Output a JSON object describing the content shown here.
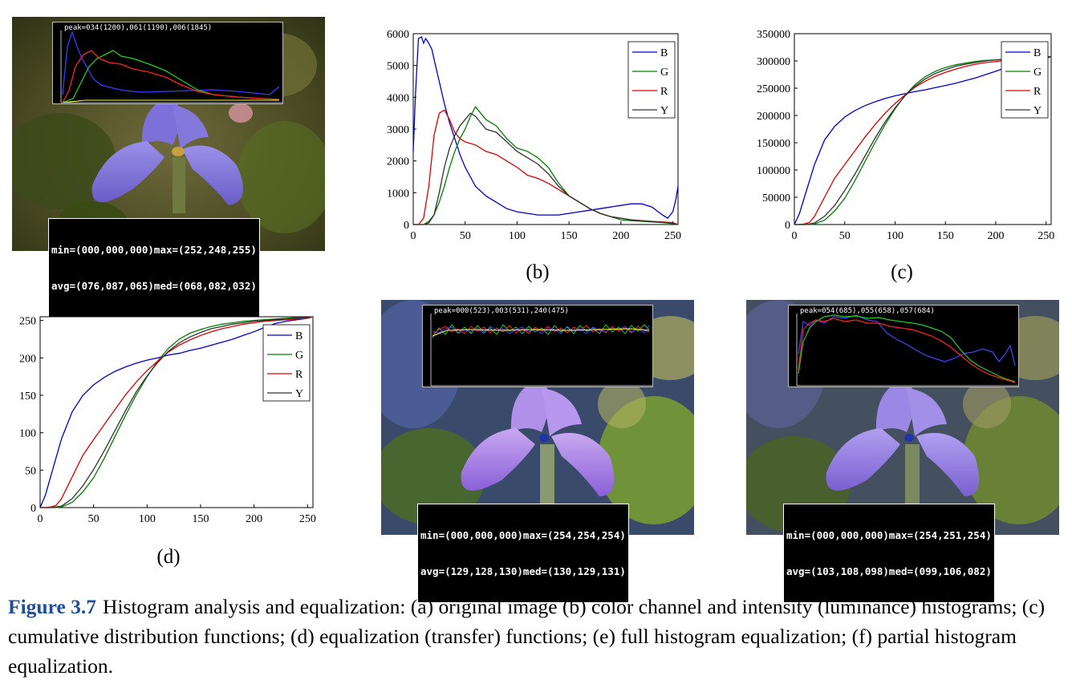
{
  "panels": {
    "a": {
      "label": "(a)",
      "peak": "peak=034(1200),061(1190),006(1845)",
      "stats_line1": "min=(000,000,000)max=(252,248,255)",
      "stats_line2": "avg=(076,087,065)med=(068,082,032)"
    },
    "b": {
      "label": "(b)"
    },
    "c": {
      "label": "(c)"
    },
    "d": {
      "label": "(d)"
    },
    "e": {
      "label": "(e)",
      "peak": "peak=000(523),003(531),240(475)",
      "stats_line1": "min=(000,000,000)max=(254,254,254)",
      "stats_line2": "avg=(129,128,130)med=(130,129,131)"
    },
    "f": {
      "label": "(f)",
      "peak": "peak=054(685),055(658),057(684)",
      "stats_line1": "min=(000,000,000)max=(254,251,254)",
      "stats_line2": "avg=(103,108,098)med=(099,106,082)"
    }
  },
  "caption": {
    "figure": "Figure 3.7",
    "text": "Histogram analysis and equalization: (a) original image (b) color channel and intensity (luminance) histograms; (c) cumulative distribution functions; (d) equalization (transfer) functions; (e) full histogram equalization; (f) partial histogram equalization."
  },
  "colors": {
    "B": "#0000cc",
    "G": "#008000",
    "R": "#e00000",
    "Y": "#333333"
  },
  "chart_data": [
    {
      "id": "b",
      "type": "line",
      "title": "",
      "xlabel": "",
      "ylabel": "",
      "xlim": [
        0,
        255
      ],
      "ylim": [
        0,
        6000
      ],
      "xticks": [
        0,
        50,
        100,
        150,
        200,
        250
      ],
      "yticks": [
        0,
        1000,
        2000,
        3000,
        4000,
        5000,
        6000
      ],
      "grid": false,
      "legend": "top-right",
      "series": [
        {
          "name": "B",
          "color": "#0000cc",
          "x": [
            0,
            2,
            5,
            8,
            10,
            12,
            15,
            18,
            20,
            25,
            30,
            35,
            40,
            45,
            50,
            60,
            70,
            80,
            90,
            100,
            110,
            120,
            130,
            140,
            150,
            160,
            170,
            180,
            190,
            200,
            210,
            220,
            230,
            240,
            245,
            250,
            253,
            255
          ],
          "y": [
            2300,
            4000,
            5850,
            5900,
            5700,
            5850,
            5700,
            5500,
            5200,
            4500,
            3800,
            3200,
            2700,
            2200,
            1800,
            1200,
            900,
            700,
            500,
            400,
            350,
            300,
            300,
            300,
            350,
            400,
            450,
            500,
            550,
            600,
            650,
            650,
            550,
            300,
            200,
            400,
            800,
            1200
          ]
        },
        {
          "name": "G",
          "color": "#008000",
          "x": [
            0,
            10,
            15,
            20,
            25,
            30,
            35,
            40,
            45,
            50,
            55,
            60,
            65,
            70,
            75,
            80,
            90,
            100,
            110,
            120,
            130,
            140,
            150,
            160,
            170,
            180,
            190,
            200,
            210,
            220,
            230,
            240,
            250,
            255
          ],
          "y": [
            0,
            0,
            100,
            300,
            700,
            1200,
            1800,
            2300,
            2700,
            3000,
            3400,
            3700,
            3500,
            3300,
            3200,
            3100,
            2700,
            2400,
            2300,
            2100,
            1800,
            1300,
            900,
            700,
            500,
            350,
            250,
            150,
            120,
            100,
            80,
            60,
            30,
            0
          ]
        },
        {
          "name": "R",
          "color": "#e00000",
          "x": [
            0,
            5,
            10,
            15,
            20,
            25,
            30,
            35,
            40,
            45,
            50,
            60,
            70,
            80,
            90,
            100,
            110,
            120,
            130,
            140,
            150,
            160,
            170,
            180,
            190,
            200,
            210,
            220,
            230,
            240,
            250,
            255
          ],
          "y": [
            0,
            0,
            200,
            1200,
            2800,
            3500,
            3600,
            3300,
            2900,
            2700,
            2600,
            2500,
            2300,
            2200,
            2000,
            1800,
            1550,
            1450,
            1300,
            1100,
            900,
            700,
            500,
            350,
            250,
            200,
            150,
            120,
            100,
            80,
            60,
            0
          ]
        },
        {
          "name": "Y",
          "color": "#333333",
          "x": [
            0,
            10,
            15,
            20,
            25,
            30,
            35,
            40,
            45,
            50,
            55,
            60,
            70,
            80,
            90,
            100,
            110,
            120,
            130,
            140,
            150,
            160,
            170,
            180,
            190,
            200,
            210,
            220,
            230,
            240,
            250,
            255
          ],
          "y": [
            0,
            0,
            50,
            300,
            1000,
            1800,
            2400,
            2800,
            3100,
            3300,
            3500,
            3400,
            3000,
            2900,
            2600,
            2300,
            2100,
            1900,
            1600,
            1200,
            900,
            700,
            500,
            350,
            250,
            200,
            150,
            120,
            90,
            70,
            40,
            0
          ]
        }
      ]
    },
    {
      "id": "c",
      "type": "line",
      "title": "",
      "xlabel": "",
      "ylabel": "",
      "xlim": [
        0,
        255
      ],
      "ylim": [
        0,
        350000
      ],
      "xticks": [
        0,
        50,
        100,
        150,
        200,
        250
      ],
      "yticks": [
        0,
        50000,
        100000,
        150000,
        200000,
        250000,
        300000,
        350000
      ],
      "grid": false,
      "legend": "top-right",
      "series": [
        {
          "name": "B",
          "color": "#0000cc",
          "x": [
            0,
            5,
            10,
            20,
            30,
            40,
            50,
            60,
            70,
            80,
            90,
            100,
            110,
            120,
            130,
            140,
            150,
            160,
            170,
            180,
            190,
            200,
            210,
            220,
            230,
            240,
            250,
            255
          ],
          "y": [
            0,
            20000,
            50000,
            110000,
            155000,
            180000,
            197000,
            209000,
            218000,
            225000,
            231000,
            236000,
            240000,
            244000,
            247000,
            251000,
            255000,
            259000,
            264000,
            269000,
            275000,
            281000,
            288000,
            294000,
            298000,
            301000,
            305000,
            308000
          ]
        },
        {
          "name": "G",
          "color": "#008000",
          "x": [
            0,
            10,
            15,
            20,
            30,
            40,
            50,
            60,
            70,
            80,
            90,
            100,
            110,
            120,
            130,
            140,
            150,
            160,
            170,
            180,
            190,
            200,
            210,
            220,
            230,
            240,
            250,
            255
          ],
          "y": [
            0,
            0,
            0,
            1000,
            8000,
            25000,
            48000,
            80000,
            115000,
            150000,
            183000,
            212000,
            237000,
            257000,
            271000,
            281000,
            288000,
            293000,
            296000,
            299000,
            301000,
            302000,
            303000,
            304000,
            305000,
            306000,
            307000,
            308000
          ]
        },
        {
          "name": "R",
          "color": "#e00000",
          "x": [
            0,
            5,
            10,
            15,
            20,
            30,
            40,
            50,
            60,
            70,
            80,
            90,
            100,
            110,
            120,
            130,
            140,
            150,
            160,
            170,
            180,
            190,
            200,
            210,
            220,
            230,
            240,
            250,
            255
          ],
          "y": [
            0,
            0,
            1000,
            4000,
            15000,
            50000,
            85000,
            110000,
            135000,
            160000,
            183000,
            204000,
            222000,
            238000,
            252000,
            263000,
            272000,
            279000,
            285000,
            290000,
            294000,
            297000,
            299000,
            301000,
            303000,
            304000,
            305000,
            306000,
            308000
          ]
        },
        {
          "name": "Y",
          "color": "#333333",
          "x": [
            0,
            10,
            15,
            20,
            30,
            40,
            50,
            60,
            70,
            80,
            90,
            100,
            110,
            120,
            130,
            140,
            150,
            160,
            170,
            180,
            190,
            200,
            210,
            220,
            230,
            240,
            250,
            255
          ],
          "y": [
            0,
            0,
            1000,
            3000,
            15000,
            35000,
            62000,
            92000,
            125000,
            158000,
            188000,
            214000,
            236000,
            254000,
            267000,
            277000,
            284000,
            290000,
            294000,
            297000,
            300000,
            302000,
            303000,
            304000,
            305000,
            306000,
            307000,
            308000
          ]
        }
      ]
    },
    {
      "id": "d",
      "type": "line",
      "title": "",
      "xlabel": "",
      "ylabel": "",
      "xlim": [
        0,
        255
      ],
      "ylim": [
        0,
        255
      ],
      "xticks": [
        0,
        50,
        100,
        150,
        200,
        250
      ],
      "yticks": [
        0,
        50,
        100,
        150,
        200,
        250
      ],
      "grid": false,
      "legend": "top-right",
      "series": [
        {
          "name": "B",
          "color": "#0000cc",
          "x": [
            0,
            5,
            10,
            20,
            30,
            40,
            50,
            60,
            70,
            80,
            90,
            100,
            110,
            120,
            130,
            140,
            150,
            160,
            170,
            180,
            190,
            200,
            210,
            220,
            230,
            240,
            250,
            255
          ],
          "y": [
            0,
            17,
            42,
            92,
            128,
            150,
            164,
            174,
            182,
            188,
            193,
            197,
            200,
            204,
            206,
            210,
            213,
            217,
            221,
            225,
            230,
            235,
            241,
            246,
            249,
            251,
            253,
            255
          ]
        },
        {
          "name": "G",
          "color": "#008000",
          "x": [
            0,
            10,
            15,
            20,
            30,
            40,
            50,
            60,
            70,
            80,
            90,
            100,
            110,
            120,
            130,
            140,
            150,
            160,
            170,
            180,
            190,
            200,
            210,
            220,
            230,
            240,
            250,
            255
          ],
          "y": [
            0,
            0,
            0,
            1,
            7,
            21,
            40,
            66,
            95,
            124,
            151,
            175,
            196,
            213,
            225,
            233,
            238,
            242,
            245,
            247,
            249,
            250,
            251,
            252,
            253,
            254,
            254,
            255
          ]
        },
        {
          "name": "R",
          "color": "#e00000",
          "x": [
            0,
            5,
            10,
            15,
            20,
            30,
            40,
            50,
            60,
            70,
            80,
            90,
            100,
            110,
            120,
            130,
            140,
            150,
            160,
            170,
            180,
            190,
            200,
            210,
            220,
            230,
            240,
            250,
            255
          ],
          "y": [
            0,
            0,
            1,
            3,
            12,
            41,
            70,
            91,
            111,
            131,
            151,
            168,
            183,
            196,
            208,
            217,
            224,
            230,
            235,
            239,
            242,
            245,
            247,
            249,
            250,
            251,
            252,
            253,
            255
          ]
        },
        {
          "name": "Y",
          "color": "#333333",
          "x": [
            0,
            10,
            15,
            20,
            30,
            40,
            50,
            60,
            70,
            80,
            90,
            100,
            110,
            120,
            130,
            140,
            150,
            160,
            170,
            180,
            190,
            200,
            210,
            220,
            230,
            240,
            250,
            255
          ],
          "y": [
            0,
            0,
            1,
            2,
            12,
            29,
            51,
            76,
            103,
            130,
            155,
            176,
            194,
            209,
            220,
            228,
            234,
            239,
            242,
            245,
            247,
            249,
            250,
            251,
            252,
            253,
            254,
            255
          ]
        }
      ]
    }
  ]
}
